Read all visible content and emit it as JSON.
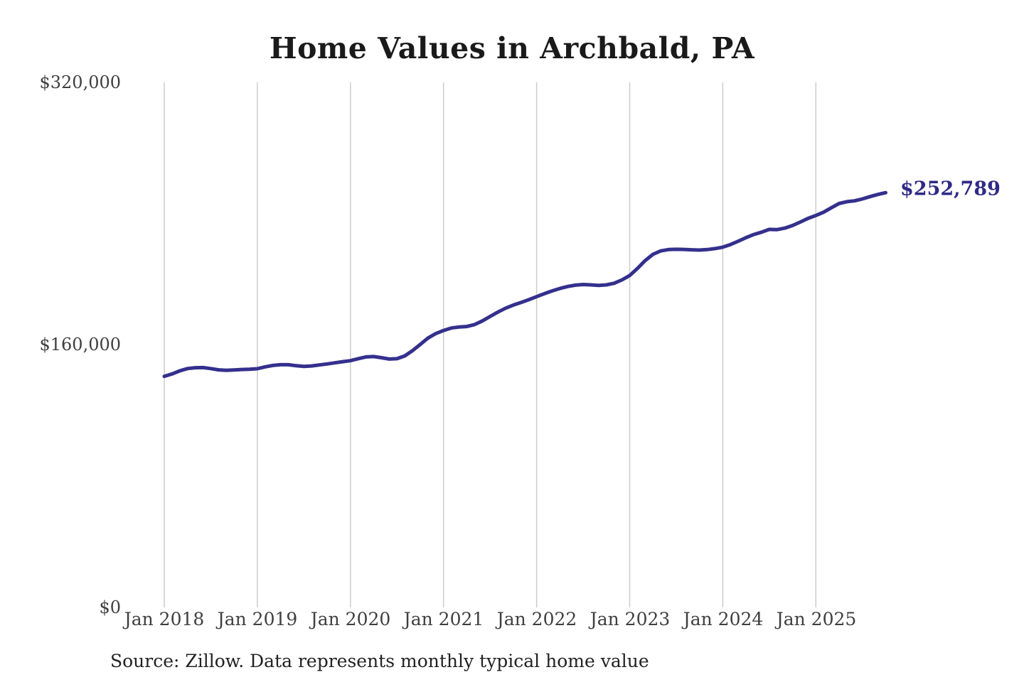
{
  "title": "Home Values in Archbald, PA",
  "source_note": "Source: Zillow. Data represents monthly typical home value",
  "latest_value_label": "$252,789",
  "colors": {
    "line": "#34308d",
    "latest_label": "#2f2a85",
    "grid": "#cccccc",
    "tick_text": "#3f3f3f",
    "title_text": "#1a1a1a",
    "source_text": "#222222",
    "background": "#ffffff"
  },
  "y_axis": {
    "ticks": [
      "$320,000",
      "$160,000",
      "$0"
    ],
    "min": 0,
    "max": 320000
  },
  "x_axis": {
    "ticks": [
      "Jan 2018",
      "Jan 2019",
      "Jan 2020",
      "Jan 2021",
      "Jan 2022",
      "Jan 2023",
      "Jan 2024",
      "Jan 2025"
    ]
  },
  "chart_data": {
    "type": "line",
    "title": "Home Values in Archbald, PA",
    "series_name": "Monthly typical home value (USD)",
    "x_start_month": "2018-01",
    "x_interval": "monthly",
    "x_end_month": "2025-10",
    "ylim": [
      0,
      320000
    ],
    "vertical_gridlines": true,
    "horizontal_gridlines": false,
    "legend": "none",
    "final_value": 252789,
    "values": [
      140800,
      142300,
      144200,
      145600,
      146100,
      146200,
      145600,
      144800,
      144500,
      144700,
      145000,
      145200,
      145500,
      146600,
      147500,
      147900,
      147900,
      147300,
      146900,
      147200,
      147800,
      148400,
      149100,
      149800,
      150400,
      151600,
      152700,
      152900,
      152200,
      151400,
      151600,
      153300,
      156500,
      160300,
      164200,
      166900,
      168800,
      170300,
      170900,
      171200,
      172400,
      174600,
      177300,
      180000,
      182400,
      184300,
      185900,
      187600,
      189400,
      191200,
      192900,
      194400,
      195600,
      196400,
      196800,
      196600,
      196300,
      196600,
      197600,
      199600,
      202300,
      206600,
      211400,
      215200,
      217300,
      218100,
      218300,
      218200,
      218000,
      217800,
      218100,
      218700,
      219600,
      221200,
      223200,
      225400,
      227300,
      228700,
      230400,
      230300,
      231200,
      232800,
      234900,
      237100,
      238900,
      240900,
      243600,
      246200,
      247300,
      247800,
      249000,
      250400,
      251700,
      252789
    ]
  }
}
